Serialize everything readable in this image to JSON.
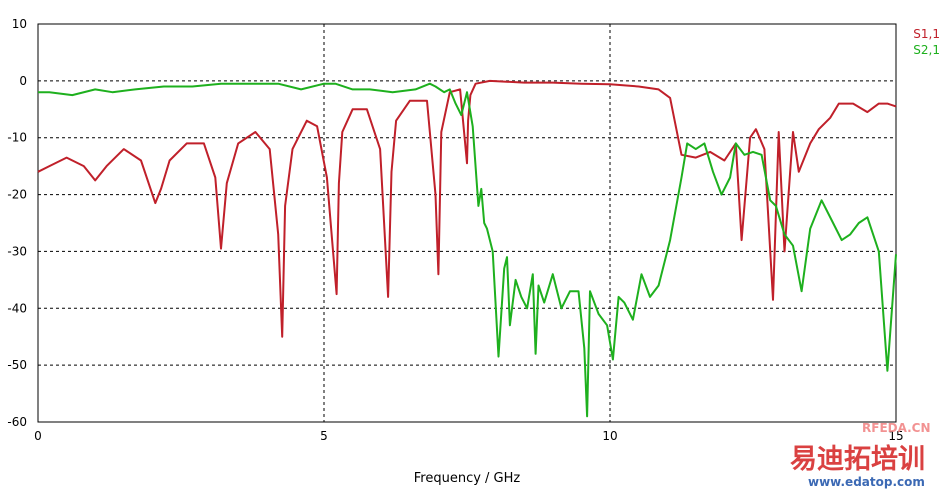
{
  "chart_data": {
    "type": "line",
    "xlabel": "Frequency / GHz",
    "ylabel": "",
    "xlim": [
      0,
      15
    ],
    "ylim": [
      -60,
      10
    ],
    "x_ticks": [
      0,
      5,
      10,
      15
    ],
    "y_ticks": [
      10,
      0,
      -10,
      -20,
      -30,
      -40,
      -50,
      -60
    ],
    "grid": "dashed",
    "legend_position": "top-right",
    "series": [
      {
        "name": "S1,1",
        "color": "#c0202a",
        "x": [
          0,
          0.2,
          0.5,
          0.8,
          1.0,
          1.2,
          1.5,
          1.8,
          2.05,
          2.15,
          2.3,
          2.6,
          2.9,
          3.1,
          3.2,
          3.3,
          3.5,
          3.8,
          4.05,
          4.2,
          4.27,
          4.32,
          4.45,
          4.7,
          4.88,
          5.05,
          5.22,
          5.26,
          5.32,
          5.5,
          5.75,
          5.98,
          6.12,
          6.18,
          6.26,
          6.5,
          6.8,
          6.95,
          7.0,
          7.05,
          7.2,
          7.38,
          7.5,
          7.52,
          7.56,
          7.65,
          7.9,
          8.5,
          9.0,
          9.5,
          10.0,
          10.5,
          10.85,
          11.05,
          11.25,
          11.5,
          11.75,
          12.0,
          12.2,
          12.3,
          12.45,
          12.55,
          12.7,
          12.85,
          12.95,
          13.05,
          13.2,
          13.3,
          13.5,
          13.65,
          13.85,
          14.0,
          14.25,
          14.5,
          14.7,
          14.85,
          15.0
        ],
        "values": [
          -16,
          -15,
          -13.5,
          -15,
          -17.5,
          -15,
          -12,
          -14,
          -21.5,
          -19,
          -14,
          -11,
          -11,
          -17,
          -29.5,
          -18,
          -11,
          -9,
          -12,
          -27,
          -45,
          -22,
          -12,
          -7,
          -8,
          -17,
          -37.5,
          -18,
          -9,
          -5,
          -5,
          -12,
          -38,
          -16,
          -7,
          -3.5,
          -3.5,
          -20,
          -34,
          -9,
          -2,
          -1.5,
          -14.5,
          -7,
          -2.5,
          -0.5,
          0,
          -0.3,
          -0.3,
          -0.5,
          -0.6,
          -1,
          -1.5,
          -3,
          -13,
          -13.5,
          -12.5,
          -14,
          -11,
          -28,
          -10,
          -8.5,
          -12,
          -38.5,
          -9,
          -30,
          -9,
          -16,
          -11,
          -8.5,
          -6.5,
          -4,
          -4,
          -5.5,
          -4,
          -4,
          -4.5
        ]
      },
      {
        "name": "S2,1",
        "color": "#1eb01e",
        "x": [
          0,
          0.2,
          0.6,
          1.0,
          1.3,
          1.7,
          2.2,
          2.7,
          3.2,
          3.8,
          4.2,
          4.6,
          5.0,
          5.2,
          5.5,
          5.8,
          6.2,
          6.6,
          6.85,
          6.95,
          7.1,
          7.2,
          7.3,
          7.4,
          7.5,
          7.6,
          7.7,
          7.75,
          7.8,
          7.85,
          7.95,
          8.05,
          8.15,
          8.2,
          8.25,
          8.35,
          8.45,
          8.55,
          8.65,
          8.7,
          8.75,
          8.85,
          9.0,
          9.15,
          9.3,
          9.45,
          9.55,
          9.6,
          9.65,
          9.8,
          9.95,
          10.05,
          10.15,
          10.25,
          10.4,
          10.55,
          10.7,
          10.85,
          11.05,
          11.25,
          11.35,
          11.5,
          11.65,
          11.8,
          11.95,
          12.1,
          12.2,
          12.35,
          12.5,
          12.65,
          12.8,
          12.9,
          13.05,
          13.2,
          13.35,
          13.5,
          13.7,
          13.9,
          14.05,
          14.2,
          14.35,
          14.5,
          14.7,
          14.85,
          15.0
        ],
        "values": [
          -2,
          -2,
          -2.5,
          -1.5,
          -2,
          -1.5,
          -1,
          -1,
          -0.5,
          -0.5,
          -0.5,
          -1.5,
          -0.5,
          -0.5,
          -1.5,
          -1.5,
          -2,
          -1.5,
          -0.5,
          -1,
          -2,
          -1.5,
          -4,
          -6,
          -2,
          -8,
          -22,
          -19,
          -25,
          -26,
          -30,
          -48.5,
          -33,
          -31,
          -43,
          -35,
          -38,
          -40,
          -34,
          -48,
          -36,
          -39,
          -34,
          -40,
          -37,
          -37,
          -47,
          -59,
          -37,
          -41,
          -43,
          -49,
          -38,
          -39,
          -42,
          -34,
          -38,
          -36,
          -28,
          -17,
          -11,
          -12,
          -11,
          -16,
          -20,
          -17,
          -11,
          -13,
          -12.5,
          -13,
          -21,
          -22,
          -27,
          -29,
          -37,
          -26,
          -21,
          -25,
          -28,
          -27,
          -25,
          -24,
          -30,
          -51,
          -30.5
        ]
      }
    ]
  },
  "watermark": {
    "brand_cn": "易迪拓培训",
    "url": "www.edatop.com",
    "site": "RFEDA.CN"
  }
}
